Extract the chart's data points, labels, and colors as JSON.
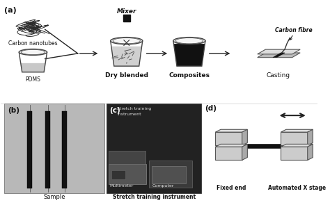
{
  "bg_color": "#ffffff",
  "panel_a_label": "(a)",
  "panel_b_label": "(b)",
  "panel_c_label": "(c)",
  "panel_d_label": "(d)",
  "label_carbon_nanotubes": "Carbon nanotubes",
  "label_pdms": "PDMS",
  "label_mixer": "Mixer",
  "label_dry_blended": "Dry blended",
  "label_composites": "Composites",
  "label_casting": "Casting",
  "label_carbon_fibre": "Carbon fibre",
  "label_sample": "Sample",
  "label_stretch": "Stretch training instrument",
  "label_stretch_top": "Stretch training\ninstrument",
  "label_multimeter": "Multimeter",
  "label_computer": "Computer",
  "label_fixed_end": "Fixed end",
  "label_auto_x": "Automated X stage",
  "arrow_color": "#222222",
  "text_color": "#111111",
  "gray_light": "#cccccc",
  "gray_mid": "#999999",
  "gray_dark": "#555555",
  "black": "#111111",
  "photo_bg_b": "#b0b0b0",
  "photo_bg_c": "#1a1a1a"
}
